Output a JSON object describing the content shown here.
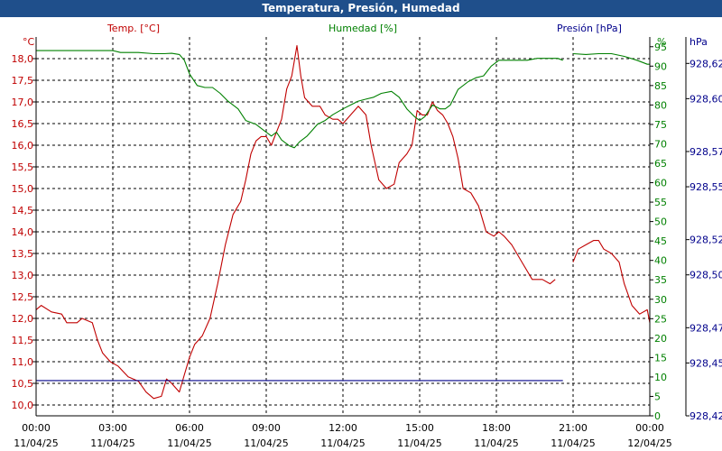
{
  "window": {
    "title": "Temperatura, Presión, Humedad"
  },
  "colors": {
    "temperature": "#c00000",
    "humidity": "#008000",
    "pressure": "#00008b",
    "grid": "#000000",
    "titlebar": "#1f4f8b"
  },
  "chart_data": {
    "type": "line",
    "title": "Temperatura, Presión, Humedad",
    "grid": true,
    "x": {
      "range": [
        "00:00",
        "24:00"
      ],
      "ticks": [
        {
          "hour": 0,
          "time": "00:00",
          "date": "11/04/25"
        },
        {
          "hour": 3,
          "time": "03:00",
          "date": "11/04/25"
        },
        {
          "hour": 6,
          "time": "06:00",
          "date": "11/04/25"
        },
        {
          "hour": 9,
          "time": "09:00",
          "date": "11/04/25"
        },
        {
          "hour": 12,
          "time": "12:00",
          "date": "11/04/25"
        },
        {
          "hour": 15,
          "time": "15:00",
          "date": "11/04/25"
        },
        {
          "hour": 18,
          "time": "18:00",
          "date": "11/04/25"
        },
        {
          "hour": 21,
          "time": "21:00",
          "date": "11/04/25"
        },
        {
          "hour": 24,
          "time": "00:00",
          "date": "12/04/25"
        }
      ]
    },
    "axes": {
      "temperature": {
        "label": "Temp. [°C]",
        "unit": "°C",
        "range": [
          9.75,
          18.5
        ],
        "ticks": [
          "10,0",
          "10,5",
          "11,0",
          "11,5",
          "12,0",
          "12,5",
          "13,0",
          "13,5",
          "14,0",
          "14,5",
          "15,0",
          "15,5",
          "16,0",
          "16,5",
          "17,0",
          "17,5",
          "18,0"
        ]
      },
      "humidity": {
        "label": "Humedad [%]",
        "unit": "%",
        "range": [
          0,
          97.5
        ],
        "ticks": [
          "0",
          "5",
          "10",
          "15",
          "20",
          "25",
          "30",
          "35",
          "40",
          "45",
          "50",
          "55",
          "60",
          "65",
          "70",
          "75",
          "80",
          "85",
          "90",
          "95"
        ]
      },
      "pressure": {
        "label": "Presión [hPa]",
        "unit": "hPa",
        "range": [
          928.42,
          928.635
        ],
        "ticks": [
          "928,42",
          "928,45",
          "928,47",
          "928,50",
          "928,52",
          "928,55",
          "928,57",
          "928,60",
          "928,62"
        ]
      }
    },
    "series": [
      {
        "name": "Temp. [°C]",
        "axis": "temperature",
        "segments": [
          [
            [
              0,
              12.2
            ],
            [
              0.2,
              12.3
            ],
            [
              0.6,
              12.15
            ],
            [
              1.0,
              12.1
            ],
            [
              1.2,
              11.9
            ],
            [
              1.6,
              11.9
            ],
            [
              1.8,
              12.0
            ],
            [
              2.2,
              11.9
            ],
            [
              2.4,
              11.5
            ],
            [
              2.6,
              11.2
            ],
            [
              2.9,
              11.0
            ],
            [
              3.2,
              10.9
            ],
            [
              3.6,
              10.65
            ],
            [
              4.0,
              10.55
            ],
            [
              4.3,
              10.3
            ],
            [
              4.6,
              10.15
            ],
            [
              4.9,
              10.2
            ],
            [
              5.1,
              10.6
            ],
            [
              5.3,
              10.5
            ],
            [
              5.6,
              10.3
            ],
            [
              5.8,
              10.7
            ],
            [
              6.0,
              11.1
            ],
            [
              6.2,
              11.4
            ],
            [
              6.5,
              11.6
            ],
            [
              6.8,
              12.0
            ],
            [
              7.1,
              12.8
            ],
            [
              7.4,
              13.7
            ],
            [
              7.7,
              14.4
            ],
            [
              8.0,
              14.7
            ],
            [
              8.2,
              15.2
            ],
            [
              8.4,
              15.8
            ],
            [
              8.6,
              16.1
            ],
            [
              8.8,
              16.2
            ],
            [
              9.0,
              16.2
            ],
            [
              9.2,
              16.0
            ],
            [
              9.4,
              16.3
            ],
            [
              9.6,
              16.6
            ],
            [
              9.8,
              17.3
            ],
            [
              10.0,
              17.6
            ],
            [
              10.2,
              18.3
            ],
            [
              10.35,
              17.6
            ],
            [
              10.5,
              17.1
            ],
            [
              10.8,
              16.9
            ],
            [
              11.1,
              16.9
            ],
            [
              11.3,
              16.7
            ],
            [
              11.6,
              16.6
            ],
            [
              11.8,
              16.6
            ],
            [
              12.0,
              16.5
            ],
            [
              12.3,
              16.7
            ],
            [
              12.6,
              16.9
            ],
            [
              12.9,
              16.7
            ],
            [
              13.1,
              16.0
            ],
            [
              13.4,
              15.2
            ],
            [
              13.7,
              15.0
            ],
            [
              14.0,
              15.1
            ],
            [
              14.2,
              15.6
            ],
            [
              14.5,
              15.8
            ],
            [
              14.7,
              16.0
            ],
            [
              14.9,
              16.8
            ],
            [
              15.1,
              16.7
            ],
            [
              15.3,
              16.7
            ],
            [
              15.5,
              17.0
            ],
            [
              15.7,
              16.8
            ],
            [
              15.9,
              16.7
            ],
            [
              16.1,
              16.5
            ],
            [
              16.3,
              16.2
            ],
            [
              16.5,
              15.7
            ],
            [
              16.7,
              15.0
            ],
            [
              17.0,
              14.9
            ],
            [
              17.3,
              14.6
            ],
            [
              17.6,
              14.0
            ],
            [
              17.9,
              13.9
            ],
            [
              18.1,
              14.0
            ],
            [
              18.3,
              13.9
            ],
            [
              18.6,
              13.7
            ],
            [
              19.0,
              13.3
            ],
            [
              19.4,
              12.9
            ],
            [
              19.8,
              12.9
            ],
            [
              20.1,
              12.8
            ],
            [
              20.3,
              12.9
            ]
          ],
          [
            [
              21.0,
              13.3
            ],
            [
              21.2,
              13.6
            ],
            [
              21.5,
              13.7
            ],
            [
              21.8,
              13.8
            ],
            [
              22.0,
              13.8
            ],
            [
              22.2,
              13.6
            ],
            [
              22.5,
              13.5
            ],
            [
              22.8,
              13.3
            ],
            [
              23.0,
              12.8
            ],
            [
              23.3,
              12.3
            ],
            [
              23.6,
              12.1
            ],
            [
              23.9,
              12.2
            ],
            [
              24.0,
              11.9
            ]
          ]
        ]
      },
      {
        "name": "Humedad [%]",
        "axis": "humidity",
        "segments": [
          [
            [
              0,
              94
            ],
            [
              1,
              94
            ],
            [
              2,
              94
            ],
            [
              3,
              94
            ],
            [
              3.3,
              93.5
            ],
            [
              4.0,
              93.5
            ],
            [
              4.6,
              93.2
            ],
            [
              5.0,
              93.2
            ],
            [
              5.3,
              93.3
            ],
            [
              5.6,
              93.0
            ],
            [
              5.8,
              91.5
            ],
            [
              6.0,
              88.0
            ],
            [
              6.3,
              85.0
            ],
            [
              6.6,
              84.5
            ],
            [
              6.9,
              84.5
            ],
            [
              7.2,
              83.0
            ],
            [
              7.5,
              81.0
            ],
            [
              7.9,
              79.0
            ],
            [
              8.2,
              76.0
            ],
            [
              8.6,
              75.0
            ],
            [
              8.9,
              73.5
            ],
            [
              9.2,
              72.0
            ],
            [
              9.4,
              73.0
            ],
            [
              9.6,
              71.0
            ],
            [
              9.9,
              69.5
            ],
            [
              10.1,
              69.0
            ],
            [
              10.3,
              70.5
            ],
            [
              10.6,
              72.0
            ],
            [
              10.8,
              73.5
            ],
            [
              11.0,
              75.0
            ],
            [
              11.3,
              76.0
            ],
            [
              11.6,
              77.5
            ],
            [
              12.0,
              79.0
            ],
            [
              12.3,
              80.0
            ],
            [
              12.6,
              81.0
            ],
            [
              12.9,
              81.5
            ],
            [
              13.2,
              82.0
            ],
            [
              13.5,
              83.0
            ],
            [
              13.9,
              83.5
            ],
            [
              14.2,
              82.0
            ],
            [
              14.5,
              79.0
            ],
            [
              14.8,
              77.0
            ],
            [
              15.0,
              76.0
            ],
            [
              15.2,
              77.0
            ],
            [
              15.5,
              80.0
            ],
            [
              15.8,
              79.0
            ],
            [
              16.0,
              79.0
            ],
            [
              16.2,
              80.0
            ],
            [
              16.5,
              84.0
            ],
            [
              16.9,
              86.0
            ],
            [
              17.2,
              87.0
            ],
            [
              17.5,
              87.5
            ],
            [
              17.8,
              90.0
            ],
            [
              18.1,
              91.5
            ],
            [
              18.4,
              91.5
            ],
            [
              18.8,
              91.5
            ],
            [
              19.2,
              91.5
            ],
            [
              19.6,
              92.0
            ],
            [
              20.0,
              92.0
            ],
            [
              20.4,
              92.0
            ],
            [
              20.6,
              91.5
            ]
          ],
          [
            [
              21.0,
              93.2
            ],
            [
              21.5,
              93.0
            ],
            [
              22.0,
              93.2
            ],
            [
              22.5,
              93.2
            ],
            [
              23.0,
              92.5
            ],
            [
              23.5,
              91.5
            ],
            [
              23.9,
              90.5
            ],
            [
              24.0,
              90.5
            ]
          ]
        ]
      },
      {
        "name": "Presión [hPa]",
        "axis": "pressure",
        "segments": [
          [
            [
              0,
              928.44
            ],
            [
              20.6,
              928.44
            ]
          ]
        ]
      }
    ]
  }
}
